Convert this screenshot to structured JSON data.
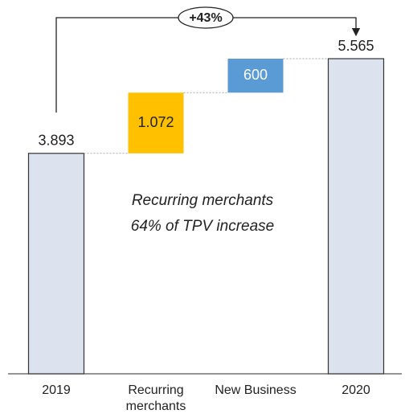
{
  "chart_data": {
    "type": "waterfall",
    "categories": [
      "2019",
      "Recurring merchants",
      "New Business",
      "2020"
    ],
    "values": [
      3893,
      1072,
      600,
      5565
    ],
    "value_labels": [
      "3.893",
      "1.072",
      "600",
      "5.565"
    ],
    "measures": [
      "absolute",
      "relative",
      "relative",
      "total"
    ],
    "colors": [
      "#dce3ef",
      "#ffc000",
      "#5b9bd5",
      "#dce3ef"
    ],
    "label_colors": [
      "#222222",
      "#222222",
      "#ffffff",
      "#222222"
    ],
    "annotations": [
      "+43%",
      "Recurring merchants",
      "64% of TPV increase"
    ]
  }
}
